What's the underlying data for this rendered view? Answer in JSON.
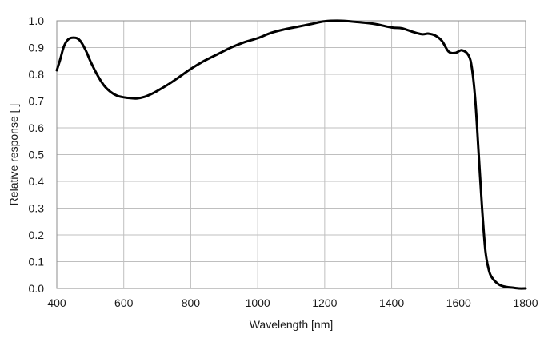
{
  "chart_data": {
    "type": "line",
    "title": "",
    "xlabel": "Wavelength [nm]",
    "ylabel": "Relative response [ ]",
    "xlim": [
      400,
      1800
    ],
    "ylim": [
      0,
      1.0
    ],
    "x_ticks": [
      400,
      600,
      800,
      1000,
      1200,
      1400,
      1600,
      1800
    ],
    "y_ticks": [
      0.0,
      0.1,
      0.2,
      0.3,
      0.4,
      0.5,
      0.6,
      0.7,
      0.8,
      0.9,
      1.0
    ],
    "grid": true,
    "legend": "none",
    "line_color": "#000000",
    "series": [
      {
        "x": [
          400,
          410,
          420,
          430,
          440,
          450,
          460,
          470,
          480,
          490,
          500,
          520,
          540,
          560,
          580,
          600,
          620,
          640,
          660,
          680,
          700,
          730,
          760,
          800,
          840,
          880,
          920,
          960,
          1000,
          1040,
          1080,
          1120,
          1160,
          1200,
          1250,
          1300,
          1350,
          1400,
          1430,
          1460,
          1490,
          1510,
          1530,
          1550,
          1570,
          1590,
          1610,
          1630,
          1640,
          1650,
          1660,
          1670,
          1680,
          1690,
          1700,
          1720,
          1740,
          1760,
          1780,
          1800
        ],
        "y": [
          0.815,
          0.855,
          0.9,
          0.925,
          0.935,
          0.937,
          0.935,
          0.925,
          0.905,
          0.88,
          0.85,
          0.8,
          0.76,
          0.735,
          0.72,
          0.714,
          0.711,
          0.71,
          0.715,
          0.725,
          0.738,
          0.76,
          0.785,
          0.82,
          0.85,
          0.875,
          0.9,
          0.92,
          0.935,
          0.955,
          0.968,
          0.978,
          0.988,
          0.998,
          1.0,
          0.995,
          0.988,
          0.975,
          0.972,
          0.96,
          0.95,
          0.952,
          0.945,
          0.925,
          0.885,
          0.88,
          0.89,
          0.87,
          0.82,
          0.7,
          0.5,
          0.3,
          0.14,
          0.07,
          0.04,
          0.015,
          0.006,
          0.003,
          0.0,
          0.0
        ]
      }
    ]
  }
}
